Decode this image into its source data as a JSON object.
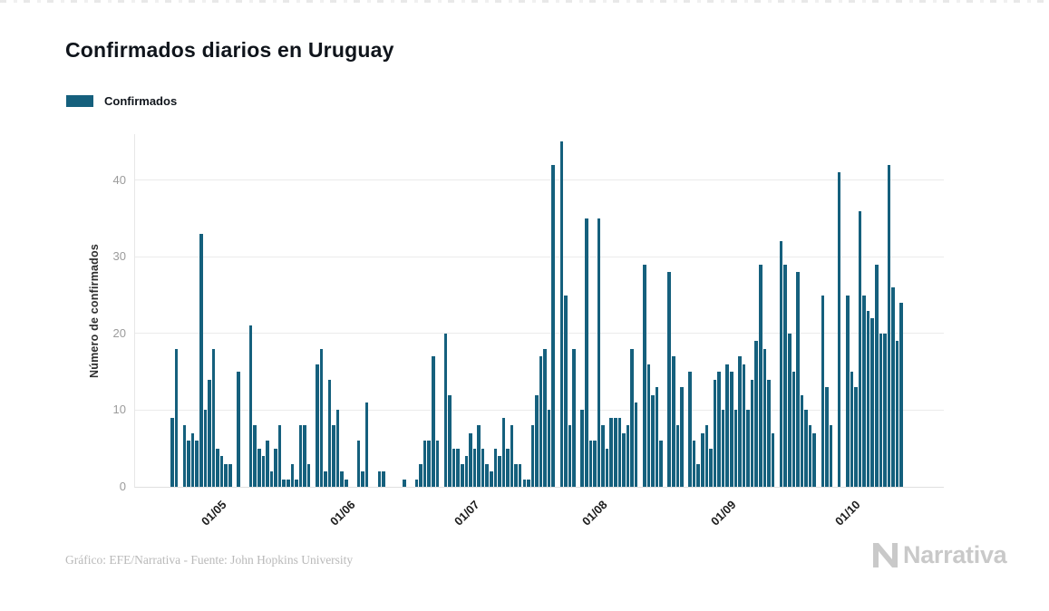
{
  "title": "Confirmados diarios en Uruguay",
  "legend": {
    "label": "Confirmados",
    "color": "#15607d"
  },
  "footer": {
    "credit": "Gráfico: EFE/Narrativa - Fuente: John Hopkins University",
    "brand": "Narrativa",
    "brand_color": "#c9c9c9"
  },
  "chart_data": {
    "type": "bar",
    "title": "Confirmados diarios en Uruguay",
    "series_name": "Confirmados",
    "xlabel": "",
    "ylabel": "Número de confirmados",
    "ylim": [
      0,
      46
    ],
    "yticks": [
      0,
      10,
      20,
      30,
      40
    ],
    "grid": true,
    "legend_position": "top-left",
    "bar_color": "#15607d",
    "x_unit": "day",
    "x_tick_labels": [
      "01/05",
      "01/06",
      "01/07",
      "01/08",
      "01/09",
      "01/10"
    ],
    "x_tick_indices": [
      10,
      41,
      71,
      102,
      133,
      163
    ],
    "values": [
      9,
      18,
      0,
      8,
      6,
      7,
      6,
      33,
      10,
      14,
      18,
      5,
      4,
      3,
      3,
      0,
      15,
      0,
      0,
      21,
      8,
      5,
      4,
      6,
      2,
      5,
      8,
      1,
      1,
      3,
      1,
      8,
      8,
      3,
      0,
      16,
      18,
      2,
      14,
      8,
      10,
      2,
      1,
      0,
      0,
      6,
      2,
      11,
      0,
      0,
      2,
      2,
      0,
      0,
      0,
      0,
      1,
      0,
      0,
      1,
      3,
      6,
      6,
      17,
      6,
      0,
      20,
      12,
      5,
      5,
      3,
      4,
      7,
      5,
      8,
      5,
      3,
      2,
      5,
      4,
      9,
      5,
      8,
      3,
      3,
      1,
      1,
      8,
      12,
      17,
      18,
      10,
      42,
      0,
      45,
      25,
      8,
      18,
      0,
      10,
      35,
      6,
      6,
      35,
      8,
      5,
      9,
      9,
      9,
      7,
      8,
      18,
      11,
      0,
      29,
      16,
      12,
      13,
      6,
      0,
      28,
      17,
      8,
      13,
      0,
      15,
      6,
      3,
      7,
      8,
      5,
      14,
      15,
      10,
      16,
      15,
      10,
      17,
      16,
      10,
      14,
      19,
      29,
      18,
      14,
      7,
      0,
      32,
      29,
      20,
      15,
      28,
      12,
      10,
      8,
      7,
      0,
      25,
      13,
      8,
      0,
      41,
      0,
      25,
      15,
      13,
      36,
      25,
      23,
      22,
      29,
      20,
      20,
      42,
      26,
      19,
      24
    ]
  }
}
